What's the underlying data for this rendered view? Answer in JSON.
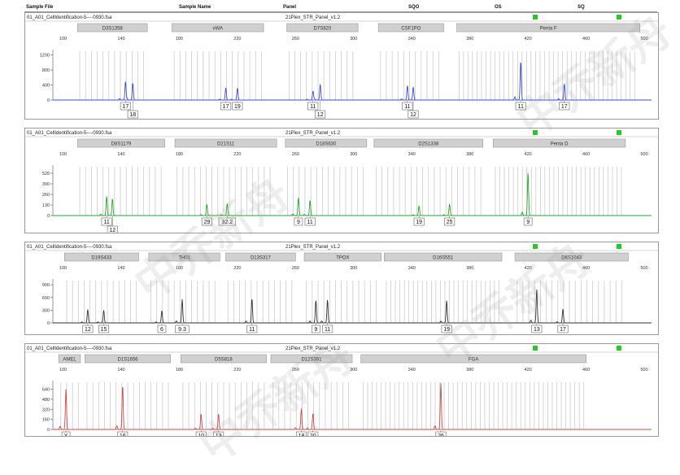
{
  "header": {
    "sample_file": "Sample File",
    "sample_name": "Sample Name",
    "panel": "Panel",
    "sqo": "SQO",
    "os": "OS",
    "sq": "SQ"
  },
  "colors": {
    "blue": "#3b4cd0",
    "green": "#2aa52a",
    "black": "#333333",
    "red": "#d04848",
    "status": "#22cc22",
    "locus_box": "#d0d0d0"
  },
  "watermark": "中乔新舟",
  "chart_data": [
    {
      "type": "line",
      "file": "01_A01_CellIdentification-5----0930.fsa",
      "panel": "21Plex_STR_Panel_v1.2",
      "color": "blue",
      "x_ticks": [
        100,
        140,
        180,
        220,
        260,
        300,
        340,
        380,
        420,
        460,
        500
      ],
      "xlim": [
        93,
        505
      ],
      "ylim": [
        0,
        1300
      ],
      "y_ticks": [
        0,
        400,
        800,
        1200
      ],
      "y_tick_labels": [
        "0",
        "400",
        "800",
        "1200"
      ],
      "loci": [
        {
          "name": "D3S1358",
          "start": 110,
          "end": 158
        },
        {
          "name": "vWA",
          "start": 175,
          "end": 238
        },
        {
          "name": "D7S820",
          "start": 254,
          "end": 303
        },
        {
          "name": "CSF1PO",
          "start": 317,
          "end": 362
        },
        {
          "name": "Penta F",
          "start": 371,
          "end": 497
        }
      ],
      "peaks": [
        {
          "x": 143,
          "h": 500,
          "allele": "17",
          "row": 0
        },
        {
          "x": 148,
          "h": 460,
          "allele": "18",
          "row": 1
        },
        {
          "x": 212,
          "h": 330,
          "allele": "17",
          "row": 0
        },
        {
          "x": 220,
          "h": 320,
          "allele": "19",
          "row": 0
        },
        {
          "x": 272,
          "h": 240,
          "allele": "11",
          "row": 0
        },
        {
          "x": 277,
          "h": 420,
          "allele": "12",
          "row": 1
        },
        {
          "x": 337,
          "h": 360,
          "allele": "11",
          "row": 0
        },
        {
          "x": 341,
          "h": 350,
          "allele": "12",
          "row": 1
        },
        {
          "x": 415,
          "h": 1050,
          "allele": "11",
          "row": 0
        },
        {
          "x": 445,
          "h": 440,
          "allele": "17",
          "row": 0
        }
      ]
    },
    {
      "type": "line",
      "file": "01_A01_CellIdentification-5----0930.fsa",
      "panel": "21Plex_STR_Panel_v1.2",
      "color": "green",
      "x_ticks": [
        100,
        140,
        180,
        220,
        260,
        300,
        340,
        380,
        420,
        460,
        500
      ],
      "xlim": [
        93,
        505
      ],
      "ylim": [
        0,
        600
      ],
      "y_ticks": [
        0,
        130,
        260,
        390,
        520
      ],
      "y_tick_labels": [
        "0",
        "130",
        "260",
        "390",
        "520"
      ],
      "loci": [
        {
          "name": "D8S1179",
          "start": 110,
          "end": 170
        },
        {
          "name": "D21S11",
          "start": 177,
          "end": 247
        },
        {
          "name": "D18S630",
          "start": 253,
          "end": 309
        },
        {
          "name": "D2S1338",
          "start": 314,
          "end": 389
        },
        {
          "name": "Penta D",
          "start": 396,
          "end": 487
        }
      ],
      "peaks": [
        {
          "x": 130,
          "h": 220,
          "allele": "11",
          "row": 0
        },
        {
          "x": 134,
          "h": 210,
          "allele": "12",
          "row": 1
        },
        {
          "x": 199,
          "h": 140,
          "allele": "29",
          "row": 0
        },
        {
          "x": 213,
          "h": 150,
          "allele": "32.2",
          "row": 0
        },
        {
          "x": 262,
          "h": 220,
          "allele": "9",
          "row": 0
        },
        {
          "x": 270,
          "h": 190,
          "allele": "11",
          "row": 0
        },
        {
          "x": 345,
          "h": 120,
          "allele": "19",
          "row": 0
        },
        {
          "x": 366,
          "h": 140,
          "allele": "25",
          "row": 0
        },
        {
          "x": 420,
          "h": 530,
          "allele": "9",
          "row": 0
        }
      ]
    },
    {
      "type": "line",
      "file": "01_A01_CellIdentification-5----0930.fsa",
      "panel": "21Plex_STR_Panel_v1.2",
      "color": "black",
      "x_ticks": [
        100,
        140,
        180,
        220,
        260,
        300,
        340,
        380,
        420,
        460,
        500
      ],
      "xlim": [
        93,
        505
      ],
      "ylim": [
        0,
        1000
      ],
      "y_ticks": [
        0,
        300,
        600,
        900
      ],
      "y_tick_labels": [
        "0",
        "300",
        "600",
        "900"
      ],
      "loci": [
        {
          "name": "D19S433",
          "start": 101,
          "end": 152
        },
        {
          "name": "TH01",
          "start": 159,
          "end": 208
        },
        {
          "name": "D13S317",
          "start": 212,
          "end": 260
        },
        {
          "name": "TPOX",
          "start": 266,
          "end": 319
        },
        {
          "name": "D16S551",
          "start": 321,
          "end": 402
        },
        {
          "name": "D6S1043",
          "start": 411,
          "end": 489
        }
      ],
      "peaks": [
        {
          "x": 117,
          "h": 320,
          "allele": "12",
          "row": 0
        },
        {
          "x": 128,
          "h": 300,
          "allele": "15",
          "row": 0
        },
        {
          "x": 168,
          "h": 290,
          "allele": "6",
          "row": 0
        },
        {
          "x": 182,
          "h": 560,
          "allele": "9.3",
          "row": 0
        },
        {
          "x": 230,
          "h": 580,
          "allele": "11",
          "row": 0
        },
        {
          "x": 274,
          "h": 540,
          "allele": "9",
          "row": 0
        },
        {
          "x": 282,
          "h": 550,
          "allele": "11",
          "row": 0
        },
        {
          "x": 364,
          "h": 530,
          "allele": "19",
          "row": 0
        },
        {
          "x": 426,
          "h": 800,
          "allele": "13",
          "row": 0
        },
        {
          "x": 444,
          "h": 330,
          "allele": "17",
          "row": 0
        }
      ]
    },
    {
      "type": "line",
      "file": "01_A01_CellIdentification-5----0930.fsa",
      "panel": "21Plex_STR_Panel_v1.2",
      "color": "red",
      "x_ticks": [
        100,
        140,
        180,
        220,
        260,
        300,
        340,
        380,
        420,
        460,
        500
      ],
      "xlim": [
        93,
        505
      ],
      "ylim": [
        0,
        750
      ],
      "y_ticks": [
        0,
        160,
        320,
        480,
        640
      ],
      "y_tick_labels": [
        "0",
        "160",
        "320",
        "480",
        "640"
      ],
      "loci": [
        {
          "name": "AMEL",
          "start": 97,
          "end": 112
        },
        {
          "name": "D1S1656",
          "start": 115,
          "end": 174
        },
        {
          "name": "D5S818",
          "start": 181,
          "end": 240
        },
        {
          "name": "D12S391",
          "start": 243,
          "end": 299
        },
        {
          "name": "FGA",
          "start": 305,
          "end": 460
        }
      ],
      "peaks": [
        {
          "x": 102,
          "h": 640,
          "allele": "X",
          "row": 0
        },
        {
          "x": 141,
          "h": 710,
          "allele": "16",
          "row": 0
        },
        {
          "x": 195,
          "h": 250,
          "allele": "10",
          "row": 0
        },
        {
          "x": 207,
          "h": 250,
          "allele": "13",
          "row": 0
        },
        {
          "x": 264,
          "h": 330,
          "allele": "18",
          "row": 0
        },
        {
          "x": 272,
          "h": 260,
          "allele": "20",
          "row": 0
        },
        {
          "x": 360,
          "h": 740,
          "allele": "26",
          "row": 0
        }
      ]
    }
  ]
}
